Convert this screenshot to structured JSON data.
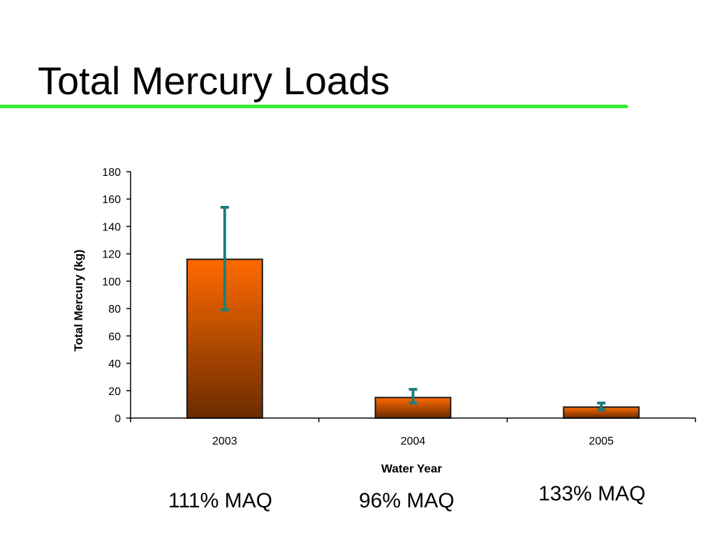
{
  "slide": {
    "title": "Total Mercury Loads",
    "rule_color": "#33ee33"
  },
  "chart_data": {
    "type": "bar",
    "categories": [
      "2003",
      "2004",
      "2005"
    ],
    "values": [
      116,
      15,
      8
    ],
    "error_bars": [
      {
        "low": 79,
        "high": 154
      },
      {
        "low": 11,
        "high": 21
      },
      {
        "low": 6,
        "high": 11
      }
    ],
    "xlabel": "Water Year",
    "ylabel": "Total Mercury (kg)",
    "ylim": [
      0,
      180
    ],
    "yticks": [
      0,
      20,
      40,
      60,
      80,
      100,
      120,
      140,
      160,
      180
    ],
    "grid": false,
    "legend": "none",
    "colors": {
      "bar_top": "#ff6a00",
      "bar_bottom": "#6b2c00",
      "bar_edge": "#1a1a1a",
      "error_bar": "#1a7f7a",
      "axis": "#000000"
    }
  },
  "annotations": {
    "maq_2003": "111% MAQ",
    "maq_2004": "96% MAQ",
    "maq_2005": "133% MAQ"
  }
}
